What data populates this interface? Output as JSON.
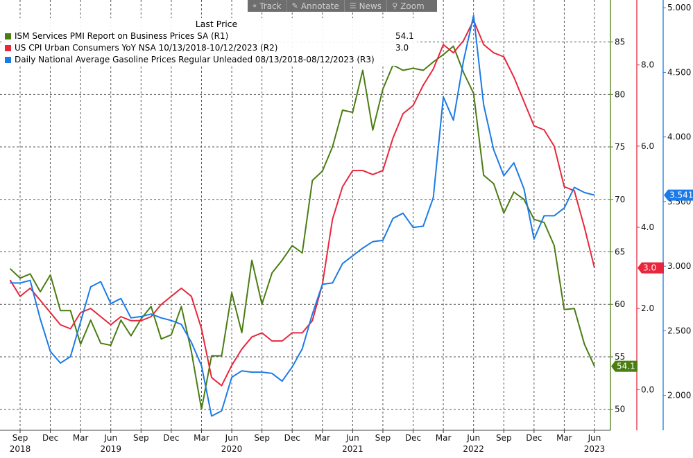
{
  "toolbar": {
    "items": [
      {
        "label": "Track",
        "icon": "crosshair-icon",
        "glyph": "⌖"
      },
      {
        "label": "Annotate",
        "icon": "pencil-icon",
        "glyph": "✎"
      },
      {
        "label": "News",
        "icon": "news-icon",
        "glyph": "☰"
      },
      {
        "label": "Zoom",
        "icon": "magnifier-icon",
        "glyph": "⚲"
      }
    ]
  },
  "legend": {
    "title": "Last Price",
    "entries": [
      {
        "label": "ISM Services PMI Report on Business Prices SA  (R1)",
        "value": "54.1",
        "color": "#4a7d12"
      },
      {
        "label": "US CPI Urban Consumers YoY NSA 10/13/2018-10/12/2023   (R2)",
        "value": "3.0",
        "color": "#e8273c"
      },
      {
        "label": "Daily National Average Gasoline Prices Regular Unleaded 08/13/2018-08/12/2023   (R3)",
        "value": "3.541",
        "color": "#1a7be8"
      }
    ]
  },
  "chart_data": {
    "type": "line",
    "x_ticks": [
      {
        "label": "Sep",
        "year": "2018",
        "date": "2018-09"
      },
      {
        "label": "Dec",
        "date": "2018-12"
      },
      {
        "label": "Mar",
        "date": "2019-03"
      },
      {
        "label": "Jun",
        "year": "2019",
        "date": "2019-06"
      },
      {
        "label": "Sep",
        "date": "2019-09"
      },
      {
        "label": "Dec",
        "date": "2019-12"
      },
      {
        "label": "Mar",
        "date": "2020-03"
      },
      {
        "label": "Jun",
        "year": "2020",
        "date": "2020-06"
      },
      {
        "label": "Sep",
        "date": "2020-09"
      },
      {
        "label": "Dec",
        "date": "2020-12"
      },
      {
        "label": "Mar",
        "date": "2021-03"
      },
      {
        "label": "Jun",
        "year": "2021",
        "date": "2021-06"
      },
      {
        "label": "Sep",
        "date": "2021-09"
      },
      {
        "label": "Dec",
        "date": "2021-12"
      },
      {
        "label": "Mar",
        "date": "2022-03"
      },
      {
        "label": "Jun",
        "year": "2022",
        "date": "2022-06"
      },
      {
        "label": "Sep",
        "date": "2022-09"
      },
      {
        "label": "Dec",
        "date": "2022-12"
      },
      {
        "label": "Mar",
        "date": "2023-03"
      },
      {
        "label": "Jun",
        "year": "2023",
        "date": "2023-06"
      }
    ],
    "axes": {
      "R1": {
        "range": [
          48,
          89
        ],
        "ticks": [
          50,
          55,
          60,
          65,
          70,
          75,
          80,
          85
        ],
        "color": "#4a7d12"
      },
      "R2": {
        "range": [
          -1.0,
          9.6
        ],
        "ticks": [
          "0.0",
          "2.0",
          "4.0",
          "6.0",
          "8.0"
        ],
        "color": "#e8273c"
      },
      "R3": {
        "range": [
          1.73,
          5.06
        ],
        "ticks": [
          "2.000",
          "2.500",
          "3.000",
          "3.500",
          "4.000",
          "4.500",
          "5.000"
        ],
        "color": "#1a7be8"
      }
    },
    "grid": true,
    "legend_position": "top-left",
    "series": [
      {
        "name": "ISM Services PMI Report on Business Prices SA  (R1)",
        "axis": "R1",
        "color": "#4a7d12",
        "last_value": "54.1",
        "points": [
          [
            "2018-08",
            63.4
          ],
          [
            "2018-09",
            62.5
          ],
          [
            "2018-10",
            62.9
          ],
          [
            "2018-11",
            61.2
          ],
          [
            "2018-12",
            62.8
          ],
          [
            "2019-01",
            59.4
          ],
          [
            "2019-02",
            59.4
          ],
          [
            "2019-03",
            56.2
          ],
          [
            "2019-04",
            58.5
          ],
          [
            "2019-05",
            56.3
          ],
          [
            "2019-06",
            56.1
          ],
          [
            "2019-07",
            58.5
          ],
          [
            "2019-08",
            57.0
          ],
          [
            "2019-09",
            58.6
          ],
          [
            "2019-10",
            59.8
          ],
          [
            "2019-11",
            56.7
          ],
          [
            "2019-12",
            57.1
          ],
          [
            "2020-01",
            59.8
          ],
          [
            "2020-02",
            55.5
          ],
          [
            "2020-03",
            50.0
          ],
          [
            "2020-04",
            55.1
          ],
          [
            "2020-05",
            55.1
          ],
          [
            "2020-06",
            61.1
          ],
          [
            "2020-07",
            57.3
          ],
          [
            "2020-08",
            64.2
          ],
          [
            "2020-09",
            60.0
          ],
          [
            "2020-10",
            63.0
          ],
          [
            "2020-11",
            64.2
          ],
          [
            "2020-12",
            65.6
          ],
          [
            "2021-01",
            64.9
          ],
          [
            "2021-02",
            71.8
          ],
          [
            "2021-03",
            72.7
          ],
          [
            "2021-04",
            75.0
          ],
          [
            "2021-05",
            78.5
          ],
          [
            "2021-06",
            78.3
          ],
          [
            "2021-07",
            82.3
          ],
          [
            "2021-08",
            76.6
          ],
          [
            "2021-09",
            80.5
          ],
          [
            "2021-10",
            82.8
          ],
          [
            "2021-11",
            82.3
          ],
          [
            "2021-12",
            82.5
          ],
          [
            "2022-01",
            82.3
          ],
          [
            "2022-02",
            83.1
          ],
          [
            "2022-03",
            83.8
          ],
          [
            "2022-04",
            84.6
          ],
          [
            "2022-05",
            82.1
          ],
          [
            "2022-06",
            80.1
          ],
          [
            "2022-07",
            72.3
          ],
          [
            "2022-08",
            71.5
          ],
          [
            "2022-09",
            68.7
          ],
          [
            "2022-10",
            70.7
          ],
          [
            "2022-11",
            70.0
          ],
          [
            "2022-12",
            68.1
          ],
          [
            "2023-01",
            67.8
          ],
          [
            "2023-02",
            65.6
          ],
          [
            "2023-03",
            59.5
          ],
          [
            "2023-04",
            59.6
          ],
          [
            "2023-05",
            56.2
          ],
          [
            "2023-06",
            54.1
          ]
        ]
      },
      {
        "name": "US CPI Urban Consumers YoY NSA 10/13/2018-10/12/2023   (R2)",
        "axis": "R2",
        "color": "#e8273c",
        "last_value": "3.0",
        "points": [
          [
            "2018-08",
            2.7
          ],
          [
            "2018-09",
            2.3
          ],
          [
            "2018-10",
            2.5
          ],
          [
            "2018-11",
            2.2
          ],
          [
            "2018-12",
            1.9
          ],
          [
            "2019-01",
            1.6
          ],
          [
            "2019-02",
            1.5
          ],
          [
            "2019-03",
            1.9
          ],
          [
            "2019-04",
            2.0
          ],
          [
            "2019-05",
            1.8
          ],
          [
            "2019-06",
            1.6
          ],
          [
            "2019-07",
            1.8
          ],
          [
            "2019-08",
            1.7
          ],
          [
            "2019-09",
            1.7
          ],
          [
            "2019-10",
            1.8
          ],
          [
            "2019-11",
            2.1
          ],
          [
            "2019-12",
            2.3
          ],
          [
            "2020-01",
            2.5
          ],
          [
            "2020-02",
            2.3
          ],
          [
            "2020-03",
            1.5
          ],
          [
            "2020-04",
            0.3
          ],
          [
            "2020-05",
            0.1
          ],
          [
            "2020-06",
            0.6
          ],
          [
            "2020-07",
            1.0
          ],
          [
            "2020-08",
            1.3
          ],
          [
            "2020-09",
            1.4
          ],
          [
            "2020-10",
            1.2
          ],
          [
            "2020-11",
            1.2
          ],
          [
            "2020-12",
            1.4
          ],
          [
            "2021-01",
            1.4
          ],
          [
            "2021-02",
            1.7
          ],
          [
            "2021-03",
            2.6
          ],
          [
            "2021-04",
            4.2
          ],
          [
            "2021-05",
            5.0
          ],
          [
            "2021-06",
            5.4
          ],
          [
            "2021-07",
            5.4
          ],
          [
            "2021-08",
            5.3
          ],
          [
            "2021-09",
            5.4
          ],
          [
            "2021-10",
            6.2
          ],
          [
            "2021-11",
            6.8
          ],
          [
            "2021-12",
            7.0
          ],
          [
            "2022-01",
            7.5
          ],
          [
            "2022-02",
            7.9
          ],
          [
            "2022-03",
            8.5
          ],
          [
            "2022-04",
            8.3
          ],
          [
            "2022-05",
            8.6
          ],
          [
            "2022-06",
            9.1
          ],
          [
            "2022-07",
            8.5
          ],
          [
            "2022-08",
            8.3
          ],
          [
            "2022-09",
            8.2
          ],
          [
            "2022-10",
            7.7
          ],
          [
            "2022-11",
            7.1
          ],
          [
            "2022-12",
            6.5
          ],
          [
            "2023-01",
            6.4
          ],
          [
            "2023-02",
            6.0
          ],
          [
            "2023-03",
            5.0
          ],
          [
            "2023-04",
            4.9
          ],
          [
            "2023-05",
            4.0
          ],
          [
            "2023-06",
            3.0
          ]
        ]
      },
      {
        "name": "Daily National Average Gasoline Prices Regular Unleaded 08/13/2018-08/12/2023   (R3)",
        "axis": "R3",
        "color": "#1a7be8",
        "last_value": "3.541",
        "points": [
          [
            "2018-08",
            2.87
          ],
          [
            "2018-09",
            2.87
          ],
          [
            "2018-10",
            2.89
          ],
          [
            "2018-11",
            2.59
          ],
          [
            "2018-12",
            2.34
          ],
          [
            "2019-01",
            2.25
          ],
          [
            "2019-02",
            2.3
          ],
          [
            "2019-03",
            2.57
          ],
          [
            "2019-04",
            2.84
          ],
          [
            "2019-05",
            2.88
          ],
          [
            "2019-06",
            2.71
          ],
          [
            "2019-07",
            2.75
          ],
          [
            "2019-08",
            2.6
          ],
          [
            "2019-09",
            2.61
          ],
          [
            "2019-10",
            2.63
          ],
          [
            "2019-11",
            2.6
          ],
          [
            "2019-12",
            2.58
          ],
          [
            "2020-01",
            2.55
          ],
          [
            "2020-02",
            2.41
          ],
          [
            "2020-03",
            2.23
          ],
          [
            "2020-04",
            1.84
          ],
          [
            "2020-05",
            1.88
          ],
          [
            "2020-06",
            2.14
          ],
          [
            "2020-07",
            2.19
          ],
          [
            "2020-08",
            2.18
          ],
          [
            "2020-09",
            2.18
          ],
          [
            "2020-10",
            2.17
          ],
          [
            "2020-11",
            2.11
          ],
          [
            "2020-12",
            2.22
          ],
          [
            "2021-01",
            2.36
          ],
          [
            "2021-02",
            2.63
          ],
          [
            "2021-03",
            2.86
          ],
          [
            "2021-04",
            2.87
          ],
          [
            "2021-05",
            3.02
          ],
          [
            "2021-06",
            3.08
          ],
          [
            "2021-07",
            3.14
          ],
          [
            "2021-08",
            3.19
          ],
          [
            "2021-09",
            3.2
          ],
          [
            "2021-10",
            3.37
          ],
          [
            "2021-11",
            3.41
          ],
          [
            "2021-12",
            3.3
          ],
          [
            "2022-01",
            3.31
          ],
          [
            "2022-02",
            3.53
          ],
          [
            "2022-03",
            4.31
          ],
          [
            "2022-04",
            4.13
          ],
          [
            "2022-05",
            4.59
          ],
          [
            "2022-06",
            4.94
          ],
          [
            "2022-07",
            4.25
          ],
          [
            "2022-08",
            3.9
          ],
          [
            "2022-09",
            3.7
          ],
          [
            "2022-10",
            3.8
          ],
          [
            "2022-11",
            3.6
          ],
          [
            "2022-12",
            3.21
          ],
          [
            "2023-01",
            3.39
          ],
          [
            "2023-02",
            3.39
          ],
          [
            "2023-03",
            3.45
          ],
          [
            "2023-04",
            3.61
          ],
          [
            "2023-05",
            3.57
          ],
          [
            "2023-06",
            3.55
          ]
        ]
      }
    ]
  }
}
